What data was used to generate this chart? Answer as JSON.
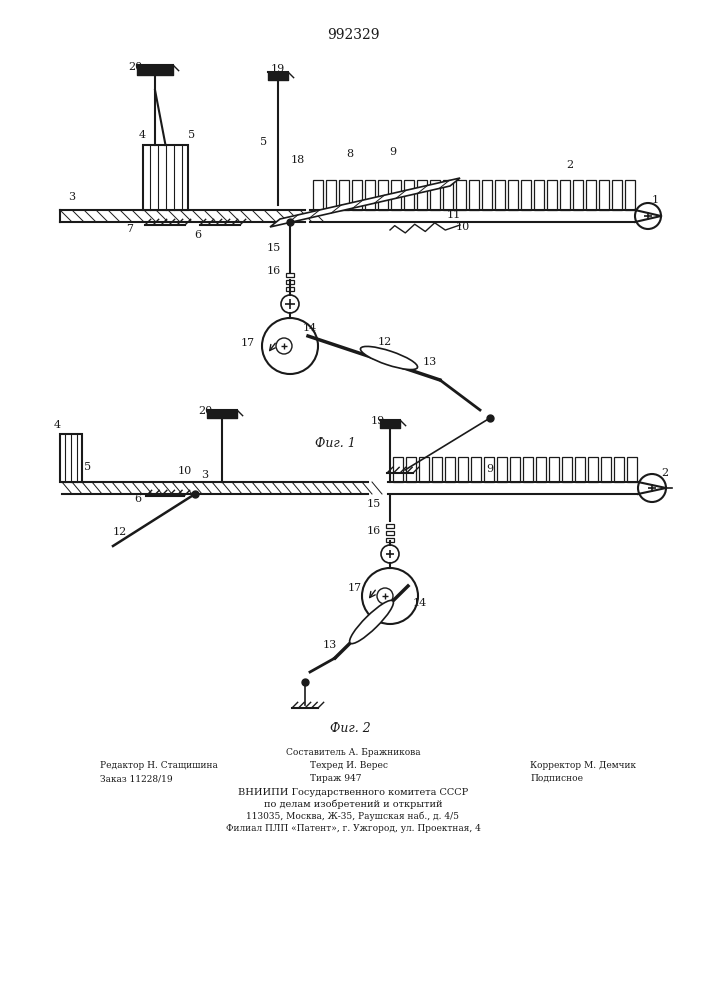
{
  "patent_number": "992329",
  "fig1_label": "Фиг. 1",
  "fig2_label": "Фиг. 2",
  "footer_comp": "Составитель А. Бражникова",
  "footer_ed": "Редактор Н. Стащишина",
  "footer_tech": "Техред И. Верес",
  "footer_corr": "Корректор М. Демчик",
  "footer_order": "Заказ 11228/19",
  "footer_tirazh": "Тираж 947",
  "footer_podp": "Подписное",
  "footer_org": "ВНИИПИ Государственного комитета СССР",
  "footer_org2": "по делам изобретений и открытий",
  "footer_addr1": "113035, Москва, Ж-35, Раушская наб., д. 4/5",
  "footer_addr2": "Филиал ПЛП «Патент», г. Ужгород, ул. Проектная, 4",
  "bg_color": "#ffffff",
  "line_color": "#1a1a1a"
}
